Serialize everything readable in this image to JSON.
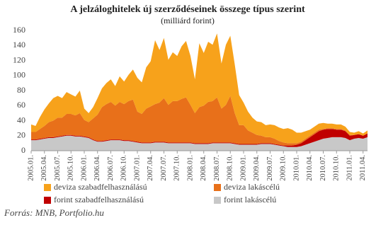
{
  "chart_data": {
    "type": "stacked_area",
    "title": "A jelzáloghitelek új szerződéseinek összege típus szerint",
    "subtitle": "(milliárd forint)",
    "source": "Forrás: MNB, Portfolio.hu",
    "categories": [
      "2005.01.",
      null,
      null,
      "2005.04.",
      null,
      null,
      "2005.07.",
      null,
      null,
      "2005.10.",
      null,
      null,
      "2006.01.",
      null,
      null,
      "2006.04.",
      null,
      null,
      "2006.07.",
      null,
      null,
      "2006.10.",
      null,
      null,
      "2007.01.",
      null,
      null,
      "2007.04.",
      null,
      null,
      "2007.07.",
      null,
      null,
      "2007.10.",
      null,
      null,
      "2008.01.",
      null,
      null,
      "2008.04.",
      null,
      null,
      "2008.07.",
      null,
      null,
      "2008.10.",
      null,
      null,
      "2009.01.",
      null,
      null,
      "2009.04.",
      null,
      null,
      "2009.07.",
      null,
      null,
      "2009.10.",
      null,
      null,
      "2010.01.",
      null,
      null,
      "2010.04.",
      null,
      null,
      "2010.07.",
      null,
      null,
      "2010.10.",
      null,
      null,
      "2011.01.",
      null,
      null,
      "2011.04.",
      null
    ],
    "series": [
      {
        "name": "deviza szabadfelhasználású",
        "color": "#f7a21b",
        "values": [
          10,
          8,
          16,
          22,
          25,
          30,
          29,
          26,
          29,
          26,
          25,
          30,
          15,
          12,
          15,
          22,
          25,
          28,
          30,
          26,
          34,
          30,
          35,
          40,
          45,
          42,
          55,
          60,
          85,
          70,
          80,
          60,
          65,
          60,
          70,
          75,
          65,
          45,
          85,
          70,
          80,
          75,
          85,
          60,
          80,
          80,
          65,
          40,
          30,
          25,
          20,
          18,
          18,
          16,
          17,
          18,
          18,
          18,
          20,
          18,
          14,
          12,
          10,
          8,
          8,
          8,
          8,
          6,
          6,
          6,
          6,
          5,
          4,
          3,
          4,
          3,
          4
        ]
      },
      {
        "name": "deviza lakáscélú",
        "color": "#e8701a",
        "values": [
          10,
          10,
          13,
          16,
          20,
          22,
          25,
          24,
          28,
          28,
          27,
          30,
          22,
          20,
          28,
          35,
          45,
          48,
          50,
          45,
          50,
          48,
          52,
          55,
          40,
          38,
          45,
          48,
          50,
          52,
          58,
          50,
          55,
          55,
          58,
          60,
          50,
          40,
          48,
          50,
          55,
          55,
          60,
          45,
          50,
          62,
          40,
          25,
          25,
          18,
          15,
          12,
          10,
          8,
          8,
          7,
          5,
          4,
          3,
          3,
          2,
          2,
          2,
          2,
          2,
          2,
          1,
          1,
          1,
          1,
          1,
          1,
          1,
          0,
          0,
          0,
          0
        ]
      },
      {
        "name": "forint szabadfelhasználású",
        "color": "#c00000",
        "values": [
          1,
          1,
          1,
          1,
          1,
          1,
          1,
          1,
          1,
          1,
          1,
          1,
          1,
          1,
          1,
          1,
          1,
          1,
          1,
          1,
          1,
          1,
          1,
          1,
          1,
          1,
          1,
          1,
          1,
          1,
          1,
          1,
          1,
          1,
          1,
          1,
          1,
          1,
          1,
          1,
          1,
          1,
          1,
          1,
          1,
          1,
          1,
          1,
          1,
          1,
          1,
          1,
          1,
          1,
          1,
          1,
          1,
          1,
          2,
          2,
          3,
          4,
          6,
          8,
          10,
          12,
          12,
          12,
          11,
          10,
          10,
          9,
          6,
          5,
          5,
          4,
          5
        ]
      },
      {
        "name": "forint lakáscélú",
        "color": "#c8c8c8",
        "values": [
          14,
          14,
          15,
          16,
          17,
          17,
          18,
          19,
          20,
          20,
          19,
          19,
          18,
          17,
          14,
          12,
          12,
          13,
          14,
          14,
          14,
          13,
          13,
          12,
          11,
          10,
          10,
          10,
          11,
          11,
          11,
          10,
          10,
          10,
          10,
          10,
          10,
          9,
          9,
          9,
          9,
          10,
          10,
          10,
          10,
          10,
          9,
          8,
          8,
          8,
          8,
          8,
          9,
          9,
          9,
          8,
          7,
          6,
          5,
          5,
          5,
          6,
          8,
          10,
          12,
          14,
          16,
          17,
          18,
          18,
          18,
          17,
          14,
          16,
          17,
          16,
          18
        ]
      }
    ],
    "ylim": [
      0,
      160
    ],
    "yticks": [
      0,
      20,
      40,
      60,
      80,
      100,
      120,
      140,
      160
    ],
    "grid": false
  }
}
